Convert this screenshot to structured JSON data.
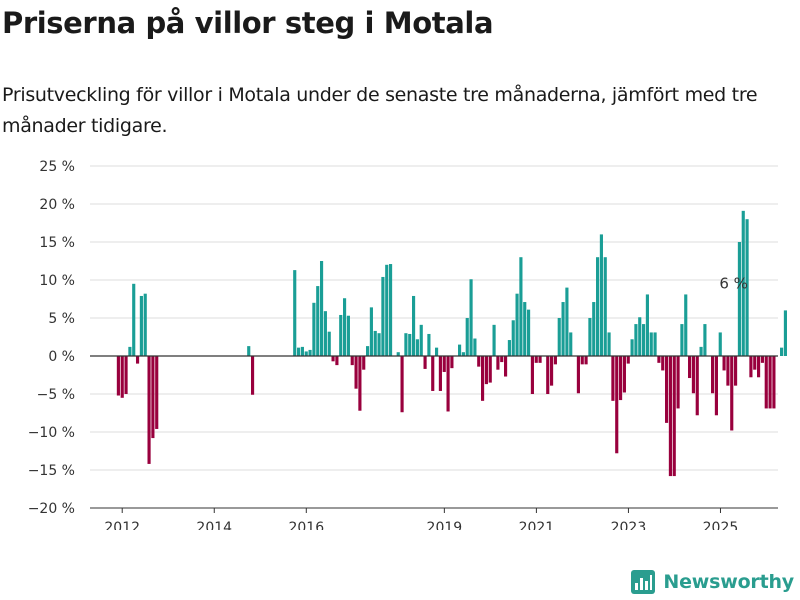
{
  "header": {
    "title": "Priserna på villor steg i Motala",
    "subtitle": "Prisutveckling för villor i Motala under de senaste tre månaderna, jämfört med tre månader tidigare."
  },
  "brand": {
    "name": "Newsworthy",
    "icon": "newsworthy-logo-icon",
    "color": "#2a9d8f"
  },
  "chart_data": {
    "type": "bar",
    "xlabel": "",
    "ylabel": "",
    "ylim": [
      -20,
      25
    ],
    "yticks": [
      25,
      20,
      15,
      10,
      5,
      0,
      -5,
      -10,
      -15,
      -20
    ],
    "ytick_labels": [
      "25 %",
      "20 %",
      "15 %",
      "10 %",
      "5 %",
      "0 %",
      "−5 %",
      "−10 %",
      "−15 %",
      "−20 %"
    ],
    "xticks": [
      {
        "label": "2012",
        "month": 2012.0
      },
      {
        "label": "2014",
        "month": 2014.0
      },
      {
        "label": "2016",
        "month": 2016.0
      },
      {
        "label": "2019",
        "month": 2019.0
      },
      {
        "label": "2021",
        "month": 2021.0
      },
      {
        "label": "2023",
        "month": 2023.0
      },
      {
        "label": "2025",
        "month": 2025.0
      }
    ],
    "x_range": [
      2011.3,
      2026.25
    ],
    "grid": true,
    "colors": {
      "positive": "#1a9e96",
      "negative": "#99003d",
      "grid": "#dddddd",
      "zero": "#333333"
    },
    "annotation": {
      "text": "6 %",
      "x": 2025.33,
      "value": 6
    },
    "series": [
      {
        "start": 2011.917,
        "step": 0.0833,
        "values": [
          -5.2,
          -5.5,
          -5,
          1.2,
          9.5,
          -1,
          7.9,
          8.2,
          -14.2,
          -10.8,
          -9.6,
          null,
          null,
          null,
          null,
          null,
          null,
          null,
          null,
          null,
          null,
          null,
          null,
          null,
          null,
          null,
          null,
          null,
          null,
          null,
          null,
          null,
          null,
          null,
          1.3,
          -5.1,
          null,
          null,
          null,
          null,
          null,
          null,
          null,
          null,
          null,
          null,
          11.3,
          1.1,
          1.2,
          0.6,
          0.8,
          7,
          9.2,
          12.5,
          5.9,
          3.2,
          -0.7,
          -1.2,
          5.4,
          7.6,
          5.3,
          -1.2,
          -4.3,
          -7.2,
          -1.8,
          1.3,
          6.4,
          3.3,
          3,
          10.4,
          12,
          12.1,
          null,
          0.5,
          -7.4,
          3,
          2.9,
          7.9,
          2.2,
          4.1,
          -1.7,
          2.9,
          -4.6,
          1.1,
          -4.6,
          -2.1,
          -7.3,
          -1.6,
          null,
          1.5,
          0.5,
          5,
          10.1,
          2.3,
          -1.4,
          -5.9,
          -3.7,
          -3.5,
          4.1,
          -1.8,
          -0.8,
          -2.7,
          2.1,
          4.7,
          8.2,
          13,
          7.1,
          6.1,
          -5,
          -0.9,
          -0.9,
          null,
          -5,
          -3.9,
          -1.1,
          5,
          7.1,
          9,
          3.1,
          null,
          -4.9,
          -1.1,
          -1.1,
          5,
          7.1,
          13,
          16,
          13,
          3.1,
          -5.9,
          -12.8,
          -5.8,
          -4.8,
          -1,
          2.2,
          4.2,
          5.1,
          4.2,
          8.1,
          3.1,
          3.1,
          -0.9,
          -1.9,
          -8.8,
          -15.8,
          -15.8,
          -6.9,
          4.2,
          8.1,
          -2.9,
          -4.9,
          -7.8,
          1.2,
          4.2,
          null,
          -4.9,
          -7.8,
          3.1,
          -1.9,
          -3.9,
          -9.8,
          -3.9,
          15,
          19.1,
          18,
          -2.8,
          -1.8,
          -2.8,
          -0.9,
          -6.9,
          -6.9,
          -6.9,
          null,
          1.1,
          6
        ]
      }
    ]
  }
}
